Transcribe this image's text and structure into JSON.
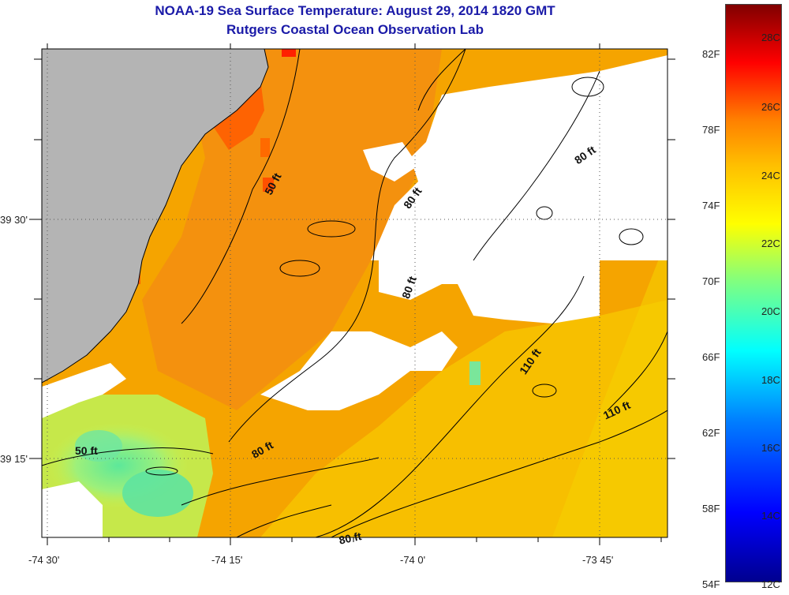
{
  "title": "NOAA-19 Sea Surface Temperature:  August 29, 2014 1820 GMT",
  "subtitle": "Rutgers Coastal Ocean Observation Lab",
  "axes": {
    "x_ticks": [
      "-74 30'",
      "-74 15'",
      "-74 0'",
      "-73 45'"
    ],
    "y_ticks": [
      "39 30'",
      "39 15'"
    ]
  },
  "contour_labels": [
    "50 ft",
    "50 ft",
    "80 ft",
    "80 ft",
    "80 ft",
    "80 ft",
    "80 ft",
    "110 ft",
    "110 ft"
  ],
  "colorbar": {
    "fahrenheit": [
      "82F",
      "78F",
      "74F",
      "70F",
      "66F",
      "62F",
      "58F",
      "54F"
    ],
    "celsius": [
      "28C",
      "26C",
      "24C",
      "22C",
      "20C",
      "18C",
      "16C",
      "14C",
      "12C"
    ]
  },
  "colors": {
    "land": "#b4b4b4",
    "cloud": "#ffffff",
    "title": "#1a1aa8"
  }
}
